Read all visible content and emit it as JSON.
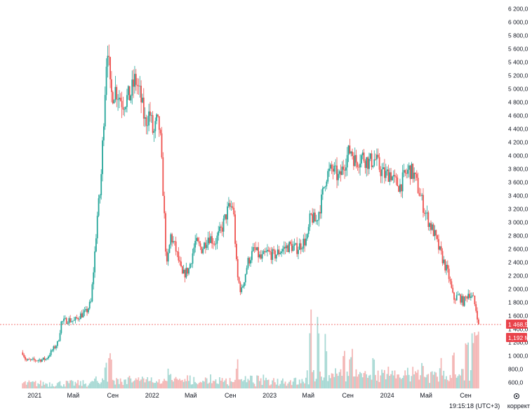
{
  "chart_data": {
    "type": "candlestick",
    "y_ticks": [
      600,
      800,
      1000,
      1200,
      1400,
      1600,
      1800,
      2000,
      2200,
      2400,
      2600,
      2800,
      3000,
      3200,
      3400,
      3600,
      3800,
      4000,
      4200,
      4400,
      4600,
      4800,
      5000,
      5200,
      5400,
      5600,
      5800,
      6000,
      6200
    ],
    "y_tick_labels": [
      "600,0",
      "800,0",
      "1 000,0",
      "1 200,0",
      "1 400,0",
      "1 600,0",
      "1 800,0",
      "2 000,0",
      "2 200,0",
      "2 400,0",
      "2 600,0",
      "2 800,0",
      "3 000,0",
      "3 200,0",
      "3 400,0",
      "3 600,0",
      "3 800,0",
      "4 000,0",
      "4 200,0",
      "4 400,0",
      "4 600,0",
      "4 800,0",
      "5 000,0",
      "5 200,0",
      "5 400,0",
      "5 600,0",
      "5 800,0",
      "6 000,0",
      "6 200,0"
    ],
    "ylim": [
      510,
      6250
    ],
    "xlim": [
      "2020-11-20",
      "2024-12-20"
    ],
    "x_ticks": [
      {
        "date": "2021-01-01",
        "label": "2021"
      },
      {
        "date": "2021-05-01",
        "label": "Май"
      },
      {
        "date": "2021-09-01",
        "label": "Сен"
      },
      {
        "date": "2022-01-01",
        "label": "2022"
      },
      {
        "date": "2022-05-01",
        "label": "Май"
      },
      {
        "date": "2022-09-01",
        "label": "Сен"
      },
      {
        "date": "2023-01-01",
        "label": "2023"
      },
      {
        "date": "2023-05-01",
        "label": "Май"
      },
      {
        "date": "2023-09-01",
        "label": "Сен"
      },
      {
        "date": "2024-01-01",
        "label": "2024"
      },
      {
        "date": "2024-05-01",
        "label": "Май"
      },
      {
        "date": "2024-09-01",
        "label": "Сен"
      }
    ],
    "price_path": [
      [
        "2020-11-25",
        1050
      ],
      [
        "2020-12-05",
        930
      ],
      [
        "2020-12-25",
        930
      ],
      [
        "2021-01-20",
        940
      ],
      [
        "2021-02-05",
        950
      ],
      [
        "2021-02-25",
        1080
      ],
      [
        "2021-03-15",
        1200
      ],
      [
        "2021-03-25",
        1500
      ],
      [
        "2021-04-15",
        1540
      ],
      [
        "2021-05-05",
        1520
      ],
      [
        "2021-05-20",
        1600
      ],
      [
        "2021-06-10",
        1650
      ],
      [
        "2021-06-25",
        1800
      ],
      [
        "2021-07-05",
        2400
      ],
      [
        "2021-07-15",
        3100
      ],
      [
        "2021-07-25",
        3500
      ],
      [
        "2021-08-05",
        4700
      ],
      [
        "2021-08-15",
        5750
      ],
      [
        "2021-08-25",
        4900
      ],
      [
        "2021-09-10",
        5000
      ],
      [
        "2021-10-01",
        4800
      ],
      [
        "2021-10-25",
        4900
      ],
      [
        "2021-11-10",
        5150
      ],
      [
        "2021-11-25",
        4900
      ],
      [
        "2021-12-10",
        4500
      ],
      [
        "2021-12-25",
        4650
      ],
      [
        "2022-01-05",
        4300
      ],
      [
        "2022-01-15",
        4500
      ],
      [
        "2022-01-25",
        4400
      ],
      [
        "2022-02-05",
        3400
      ],
      [
        "2022-02-15",
        2300
      ],
      [
        "2022-02-28",
        2800
      ],
      [
        "2022-03-15",
        2600
      ],
      [
        "2022-04-05",
        2200
      ],
      [
        "2022-04-25",
        2300
      ],
      [
        "2022-05-15",
        2700
      ],
      [
        "2022-06-05",
        2600
      ],
      [
        "2022-06-25",
        2800
      ],
      [
        "2022-07-15",
        2700
      ],
      [
        "2022-08-05",
        2900
      ],
      [
        "2022-08-25",
        3200
      ],
      [
        "2022-09-10",
        3250
      ],
      [
        "2022-09-22",
        2200
      ],
      [
        "2022-10-05",
        1950
      ],
      [
        "2022-10-25",
        2400
      ],
      [
        "2022-11-15",
        2600
      ],
      [
        "2022-12-05",
        2450
      ],
      [
        "2022-12-25",
        2550
      ],
      [
        "2023-01-15",
        2500
      ],
      [
        "2023-02-10",
        2600
      ],
      [
        "2023-03-05",
        2650
      ],
      [
        "2023-03-25",
        2600
      ],
      [
        "2023-04-15",
        2700
      ],
      [
        "2023-04-28",
        2750
      ],
      [
        "2023-05-08",
        3100
      ],
      [
        "2023-05-25",
        3000
      ],
      [
        "2023-06-10",
        3300
      ],
      [
        "2023-06-25",
        3700
      ],
      [
        "2023-07-15",
        3800
      ],
      [
        "2023-08-05",
        3650
      ],
      [
        "2023-08-25",
        3950
      ],
      [
        "2023-09-10",
        4100
      ],
      [
        "2023-09-25",
        3900
      ],
      [
        "2023-10-15",
        4000
      ],
      [
        "2023-11-05",
        3900
      ],
      [
        "2023-11-25",
        3950
      ],
      [
        "2023-12-10",
        3800
      ],
      [
        "2023-12-25",
        3700
      ],
      [
        "2024-01-10",
        3750
      ],
      [
        "2024-01-25",
        3600
      ],
      [
        "2024-02-10",
        3550
      ],
      [
        "2024-02-25",
        3700
      ],
      [
        "2024-03-10",
        3800
      ],
      [
        "2024-03-25",
        3700
      ],
      [
        "2024-04-10",
        3450
      ],
      [
        "2024-04-25",
        3200
      ],
      [
        "2024-05-10",
        3000
      ],
      [
        "2024-05-25",
        2850
      ],
      [
        "2024-06-10",
        2600
      ],
      [
        "2024-06-25",
        2400
      ],
      [
        "2024-07-10",
        2200
      ],
      [
        "2024-07-25",
        1850
      ],
      [
        "2024-08-10",
        1900
      ],
      [
        "2024-08-25",
        1800
      ],
      [
        "2024-09-10",
        1950
      ],
      [
        "2024-09-25",
        1850
      ],
      [
        "2024-10-05",
        1650
      ],
      [
        "2024-10-12",
        1468.5
      ]
    ],
    "volume_spikes": [
      [
        "2021-08-10",
        0.35
      ],
      [
        "2021-08-25",
        0.45
      ],
      [
        "2022-02-25",
        0.25
      ],
      [
        "2022-09-22",
        0.35
      ],
      [
        "2023-05-08",
        1.0
      ],
      [
        "2023-06-01",
        0.95
      ],
      [
        "2023-06-25",
        0.7
      ],
      [
        "2023-08-20",
        0.55
      ],
      [
        "2023-09-12",
        0.5
      ],
      [
        "2023-11-20",
        0.45
      ],
      [
        "2024-04-20",
        0.35
      ],
      [
        "2024-06-15",
        0.4
      ],
      [
        "2024-07-25",
        0.55
      ],
      [
        "2024-09-05",
        0.6
      ],
      [
        "2024-09-25",
        0.75
      ],
      [
        "2024-10-08",
        0.95
      ]
    ],
    "last_price": 1468.5,
    "last_price_label": "1 468,5",
    "volume_label": "1,192 M",
    "colors": {
      "up": "#26a69a",
      "down": "#ef5350",
      "vol_up": "#a8d9d4",
      "vol_down": "#f4b7b6",
      "last_line": "#ef5350",
      "label_bg": "#e9434b"
    }
  },
  "status": {
    "time": "19:15:18 (UTC+3)",
    "mode": "коррект"
  }
}
